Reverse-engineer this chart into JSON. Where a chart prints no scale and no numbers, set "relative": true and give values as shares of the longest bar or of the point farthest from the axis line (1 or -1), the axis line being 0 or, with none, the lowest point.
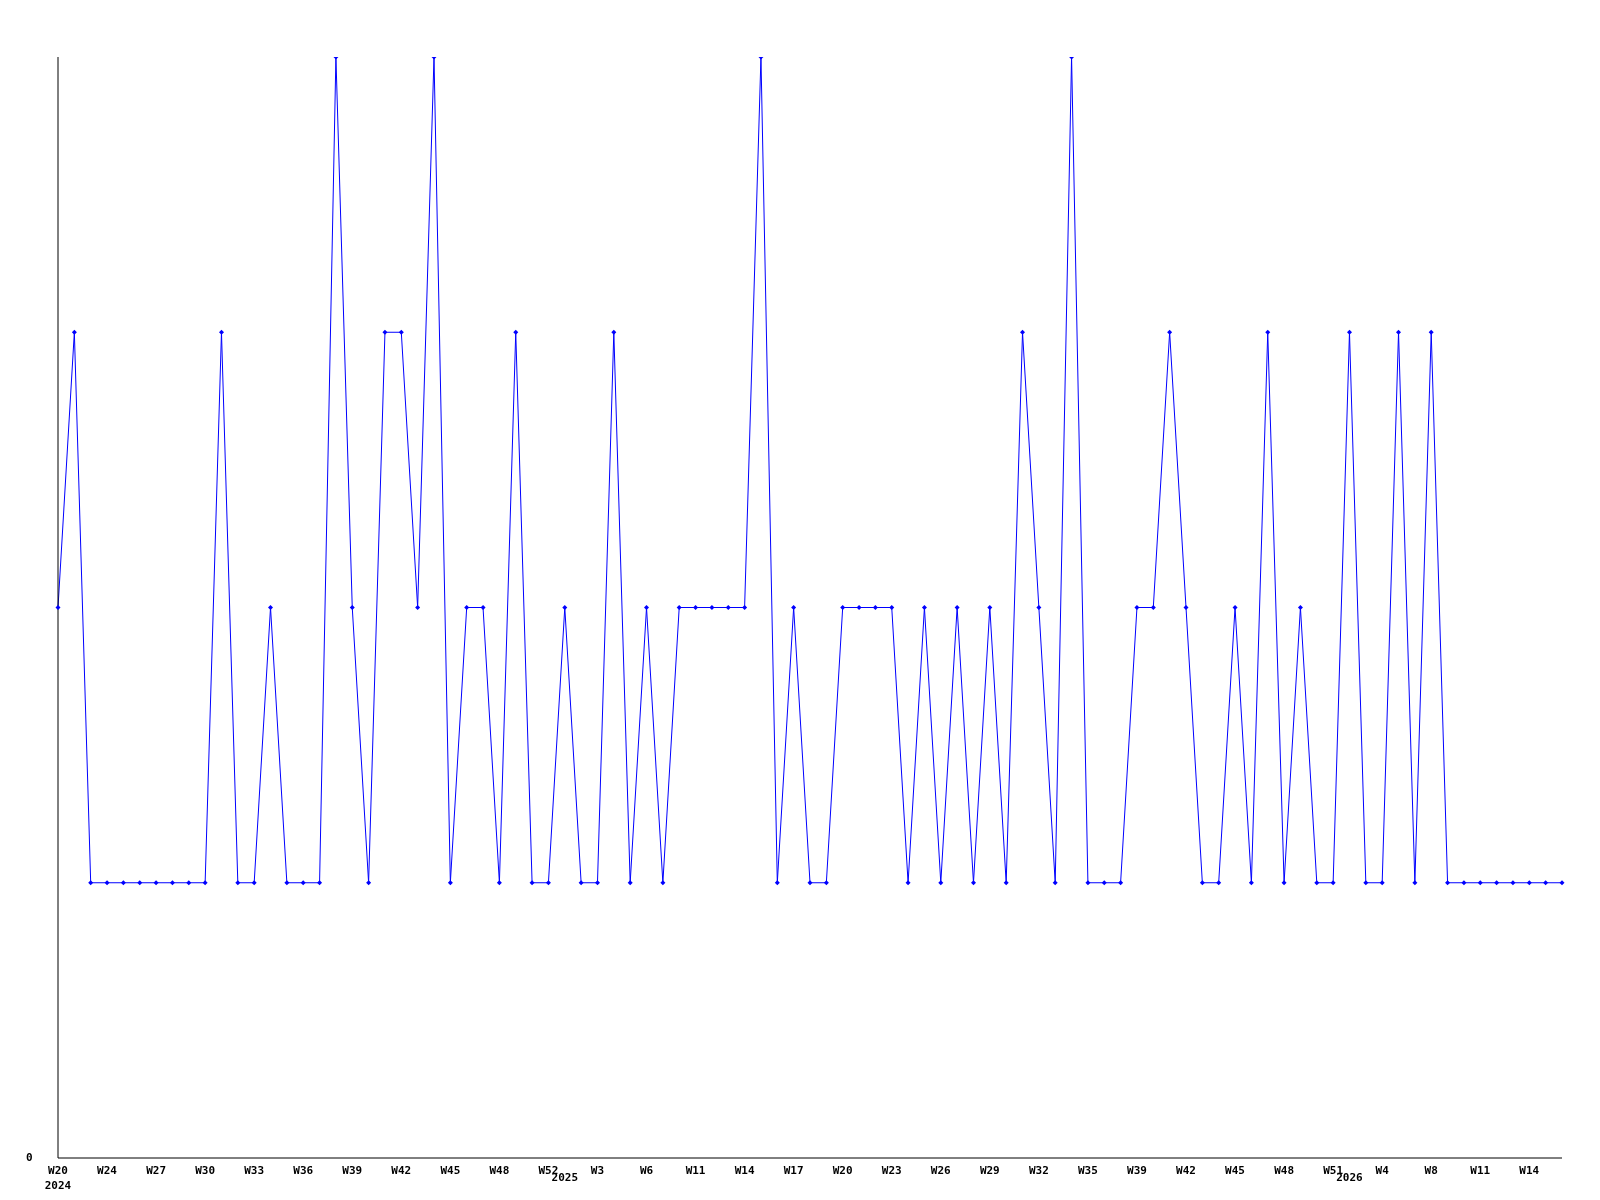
{
  "chart_data": {
    "type": "line",
    "relative": true,
    "marker": "diamond",
    "annotations": [
      "0"
    ],
    "categories": [
      "W20\n2024",
      null,
      null,
      "W24",
      null,
      null,
      "W27",
      null,
      null,
      "W30",
      null,
      null,
      "W33",
      null,
      null,
      "W36",
      null,
      null,
      "W39",
      null,
      null,
      "W42",
      null,
      null,
      "W45",
      null,
      null,
      "W48",
      null,
      null,
      "W52",
      "\n2025",
      null,
      "W3",
      null,
      null,
      "W6",
      null,
      null,
      "W11",
      null,
      null,
      "W14",
      null,
      null,
      "W17",
      null,
      null,
      "W20",
      null,
      null,
      "W23",
      null,
      null,
      "W26",
      null,
      null,
      "W29",
      null,
      null,
      "W32",
      null,
      null,
      "W35",
      null,
      null,
      "W39",
      null,
      null,
      "W42",
      null,
      null,
      "W45",
      null,
      null,
      "W48",
      null,
      null,
      "W51",
      "\n2026",
      null,
      "W4",
      null,
      null,
      "W8",
      null,
      null,
      "W11",
      null,
      null,
      "W14",
      null,
      null
    ],
    "series": [
      {
        "color": "#0000ff",
        "values": [
          0.5,
          0.75,
          0.25,
          0.25,
          0.25,
          0.25,
          0.25,
          0.25,
          0.25,
          0.25,
          0.75,
          0.25,
          0.25,
          0.5,
          0.25,
          0.25,
          0.25,
          1,
          0.5,
          0.25,
          0.75,
          0.75,
          0.5,
          1,
          0.25,
          0.5,
          0.5,
          0.25,
          0.75,
          0.25,
          0.25,
          0.5,
          0.25,
          0.25,
          0.75,
          0.25,
          0.5,
          0.25,
          0.5,
          0.5,
          0.5,
          0.5,
          0.5,
          1,
          0.25,
          0.5,
          0.25,
          0.25,
          0.5,
          0.5,
          0.5,
          0.5,
          0.25,
          0.5,
          0.25,
          0.5,
          0.25,
          0.5,
          0.25,
          0.75,
          0.5,
          0.25,
          1,
          0.25,
          0.25,
          0.25,
          0.5,
          0.5,
          0.75,
          0.5,
          0.25,
          0.25,
          0.5,
          0.25,
          0.75,
          0.25,
          0.5,
          0.25,
          0.25,
          0.75,
          0.25,
          0.25,
          0.75,
          0.25,
          0.75,
          0.25,
          0.25,
          0.25,
          0.25,
          0.25,
          0.25,
          0.25,
          0.25
        ]
      }
    ]
  }
}
